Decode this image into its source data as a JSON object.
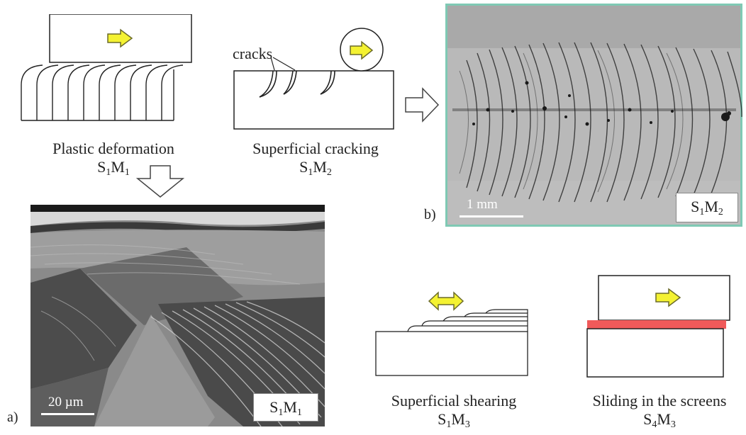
{
  "panels": {
    "plastic": {
      "caption": "Plastic deformation",
      "code_main": "S",
      "code_sub1": "1",
      "code_mid": "M",
      "code_sub2": "1"
    },
    "cracking": {
      "caption": "Superficial cracking",
      "cracks_label": "cracks",
      "code_main": "S",
      "code_sub1": "1",
      "code_mid": "M",
      "code_sub2": "2"
    },
    "shearing": {
      "caption": "Superficial shearing",
      "code_main": "S",
      "code_sub1": "1",
      "code_mid": "M",
      "code_sub2": "3"
    },
    "sliding": {
      "caption": "Sliding in the screens",
      "code_main": "S",
      "code_sub1": "4",
      "code_mid": "M",
      "code_sub2": "3"
    }
  },
  "photo_a": {
    "letter": "a)",
    "scale_text": "20 µm",
    "box_main": "S",
    "box_sub1": "1",
    "box_mid": "M",
    "box_sub2": "1"
  },
  "photo_b": {
    "letter": "b)",
    "scale_text": "1 mm",
    "box_main": "S",
    "box_sub1": "1",
    "box_mid": "M",
    "box_sub2": "2"
  },
  "colors": {
    "arrow_yellow": "#f4f232",
    "arrow_outline": "#6b6b2a",
    "screen_red": "#f05a5a",
    "photo_b_border": "#7fc9b4"
  }
}
